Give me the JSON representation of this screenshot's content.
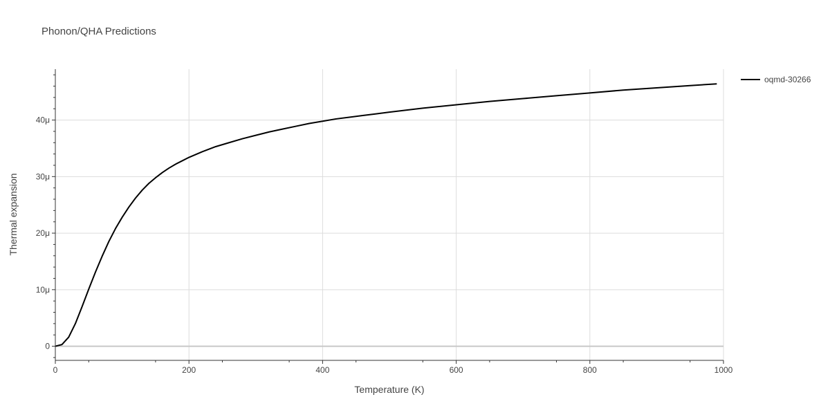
{
  "chart_data": {
    "type": "line",
    "title": "Phonon/QHA Predictions",
    "xlabel": "Temperature (K)",
    "ylabel": "Thermal expansion",
    "xlim": [
      0,
      1000
    ],
    "ylim": [
      -2.5e-06,
      4.9e-05
    ],
    "x_ticks": [
      0,
      200,
      400,
      600,
      800,
      1000
    ],
    "x_tick_labels": [
      "0",
      "200",
      "400",
      "600",
      "800",
      "1000"
    ],
    "y_ticks": [
      0,
      1e-05,
      2e-05,
      3e-05,
      4e-05
    ],
    "y_tick_labels": [
      "0",
      "10μ",
      "20μ",
      "30μ",
      "40μ"
    ],
    "grid": true,
    "legend_position": "top-right",
    "series": [
      {
        "name": "oqmd-30266",
        "color": "#000000",
        "x": [
          0,
          10,
          20,
          30,
          40,
          50,
          60,
          70,
          80,
          90,
          100,
          110,
          120,
          130,
          140,
          150,
          160,
          170,
          180,
          190,
          200,
          210,
          220,
          240,
          260,
          280,
          300,
          320,
          340,
          360,
          380,
          400,
          420,
          440,
          460,
          480,
          500,
          550,
          600,
          650,
          700,
          750,
          800,
          850,
          900,
          950,
          990
        ],
        "y": [
          0,
          3e-07,
          1.6e-06,
          4e-06,
          7e-06,
          1.01e-05,
          1.31e-05,
          1.59e-05,
          1.85e-05,
          2.08e-05,
          2.28e-05,
          2.46e-05,
          2.62e-05,
          2.76e-05,
          2.88e-05,
          2.98e-05,
          3.07e-05,
          3.15e-05,
          3.22e-05,
          3.28e-05,
          3.34e-05,
          3.39e-05,
          3.44e-05,
          3.53e-05,
          3.6e-05,
          3.67e-05,
          3.73e-05,
          3.79e-05,
          3.84e-05,
          3.89e-05,
          3.94e-05,
          3.98e-05,
          4.02e-05,
          4.05e-05,
          4.08e-05,
          4.11e-05,
          4.14e-05,
          4.21e-05,
          4.27e-05,
          4.33e-05,
          4.38e-05,
          4.43e-05,
          4.48e-05,
          4.53e-05,
          4.57e-05,
          4.61e-05,
          4.64e-05
        ]
      }
    ]
  }
}
